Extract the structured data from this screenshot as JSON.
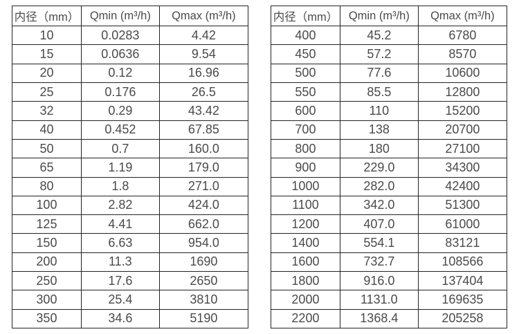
{
  "page": {
    "background": "#ffffff",
    "text_color": "#4a4a4a",
    "border_color": "#222222"
  },
  "chart_data": [
    {
      "type": "table",
      "name": "flow-rate-table-small-diameters",
      "headers": [
        "内径（mm）",
        "Qmin (m³/h)",
        "Qmax (m³/h)"
      ],
      "rows": [
        [
          "10",
          "0.0283",
          "4.42"
        ],
        [
          "15",
          "0.0636",
          "9.54"
        ],
        [
          "20",
          "0.12",
          "16.96"
        ],
        [
          "25",
          "0.176",
          "26.5"
        ],
        [
          "32",
          "0.29",
          "43.42"
        ],
        [
          "40",
          "0.452",
          "67.85"
        ],
        [
          "50",
          "0.7",
          "160.0"
        ],
        [
          "65",
          "1.19",
          "179.0"
        ],
        [
          "80",
          "1.8",
          "271.0"
        ],
        [
          "100",
          "2.82",
          "424.0"
        ],
        [
          "125",
          "4.41",
          "662.0"
        ],
        [
          "150",
          "6.63",
          "954.0"
        ],
        [
          "200",
          "11.3",
          "1690"
        ],
        [
          "250",
          "17.6",
          "2650"
        ],
        [
          "300",
          "25.4",
          "3810"
        ],
        [
          "350",
          "34.6",
          "5190"
        ]
      ]
    },
    {
      "type": "table",
      "name": "flow-rate-table-large-diameters",
      "headers": [
        "内径（mm）",
        "Qmin (m³/h)",
        "Qmax (m³/h)"
      ],
      "rows": [
        [
          "400",
          "45.2",
          "6780"
        ],
        [
          "450",
          "57.2",
          "8570"
        ],
        [
          "500",
          "77.6",
          "10600"
        ],
        [
          "550",
          "85.5",
          "12800"
        ],
        [
          "600",
          "110",
          "15200"
        ],
        [
          "700",
          "138",
          "20700"
        ],
        [
          "800",
          "180",
          "27100"
        ],
        [
          "900",
          "229.0",
          "34300"
        ],
        [
          "1000",
          "282.0",
          "42400"
        ],
        [
          "1100",
          "342.0",
          "51300"
        ],
        [
          "1200",
          "407.0",
          "61000"
        ],
        [
          "1400",
          "554.1",
          "83121"
        ],
        [
          "1600",
          "732.7",
          "108566"
        ],
        [
          "1800",
          "916.0",
          "137404"
        ],
        [
          "2000",
          "1131.0",
          "169635"
        ],
        [
          "2200",
          "1368.4",
          "205258"
        ]
      ]
    }
  ]
}
